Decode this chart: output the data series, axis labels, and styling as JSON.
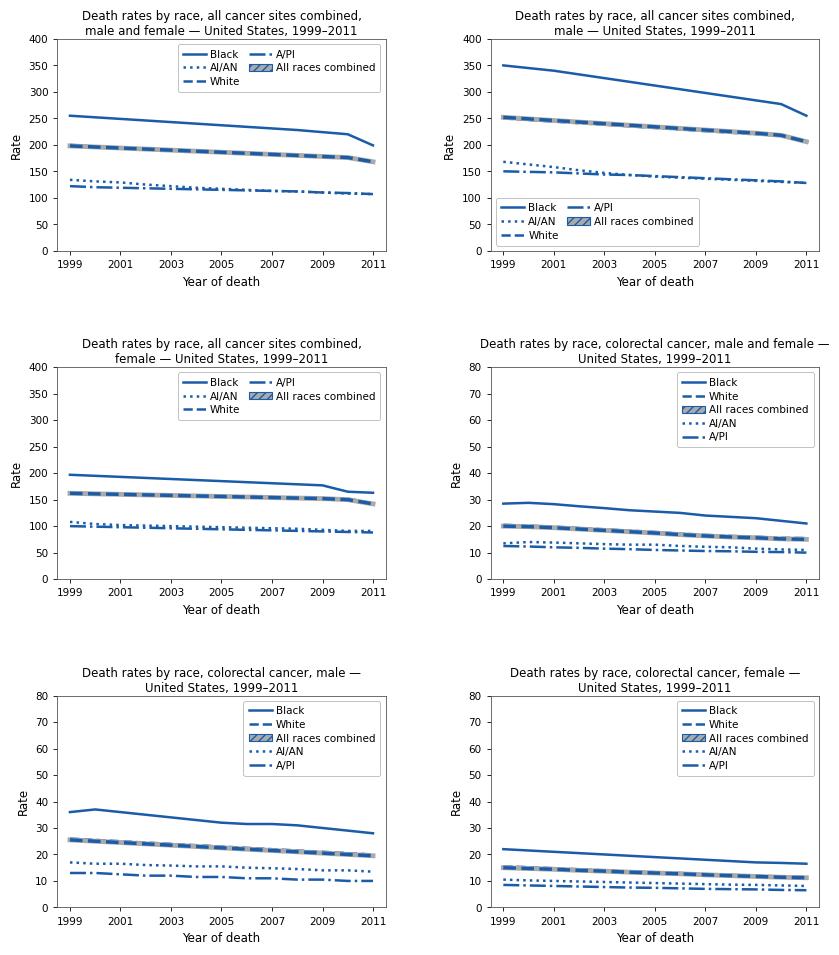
{
  "years": [
    1999,
    2000,
    2001,
    2002,
    2003,
    2004,
    2005,
    2006,
    2007,
    2008,
    2009,
    2010,
    2011
  ],
  "plots": [
    {
      "title": "Death rates by race, all cancer sites combined,\nmale and female — United States, 1999–2011",
      "ylim": [
        0,
        400
      ],
      "yticks": [
        0,
        50,
        100,
        150,
        200,
        250,
        300,
        350,
        400
      ],
      "legend_loc": "upper right",
      "legend_ncol": 2,
      "series": [
        {
          "label": "Black",
          "style": "solid",
          "color": "#1a5ca8",
          "lw": 1.8,
          "data": [
            255,
            252,
            249,
            246,
            243,
            240,
            237,
            234,
            231,
            228,
            224,
            220,
            199
          ]
        },
        {
          "label": "White",
          "style": "dashed",
          "color": "#1a5ca8",
          "lw": 1.8,
          "data": [
            200,
            197,
            195,
            193,
            191,
            189,
            187,
            185,
            183,
            181,
            179,
            177,
            169
          ]
        },
        {
          "label": "All races combined",
          "style": "arc",
          "color": "#aaaaaa",
          "lw": 3.5,
          "data": [
            198,
            196,
            194,
            192,
            190,
            188,
            186,
            184,
            182,
            180,
            178,
            176,
            168
          ]
        },
        {
          "label": "AI/AN",
          "style": "dotted",
          "color": "#1a5ca8",
          "lw": 1.8,
          "data": [
            134,
            131,
            129,
            125,
            122,
            119,
            117,
            115,
            113,
            112,
            110,
            108,
            107
          ]
        },
        {
          "label": "A/PI",
          "style": "dashdot",
          "color": "#1a5ca8",
          "lw": 1.8,
          "data": [
            122,
            120,
            119,
            118,
            117,
            116,
            115,
            114,
            113,
            112,
            110,
            109,
            107
          ]
        }
      ]
    },
    {
      "title": "Death rates by race, all cancer sites combined,\nmale — United States, 1999–2011",
      "ylim": [
        0,
        400
      ],
      "yticks": [
        0,
        50,
        100,
        150,
        200,
        250,
        300,
        350,
        400
      ],
      "legend_loc": "lower left",
      "legend_ncol": 2,
      "series": [
        {
          "label": "Black",
          "style": "solid",
          "color": "#1a5ca8",
          "lw": 1.8,
          "data": [
            350,
            345,
            340,
            333,
            326,
            319,
            312,
            305,
            298,
            291,
            284,
            277,
            255
          ]
        },
        {
          "label": "White",
          "style": "dashed",
          "color": "#1a5ca8",
          "lw": 1.8,
          "data": [
            250,
            247,
            244,
            241,
            238,
            235,
            232,
            229,
            226,
            223,
            220,
            217,
            207
          ]
        },
        {
          "label": "All races combined",
          "style": "arc",
          "color": "#aaaaaa",
          "lw": 3.5,
          "data": [
            252,
            249,
            246,
            243,
            240,
            237,
            234,
            231,
            228,
            225,
            222,
            218,
            206
          ]
        },
        {
          "label": "AI/AN",
          "style": "dotted",
          "color": "#1a5ca8",
          "lw": 1.8,
          "data": [
            168,
            163,
            158,
            152,
            147,
            143,
            140,
            138,
            136,
            134,
            132,
            130,
            128
          ]
        },
        {
          "label": "A/PI",
          "style": "dashdot",
          "color": "#1a5ca8",
          "lw": 1.8,
          "data": [
            150,
            149,
            148,
            146,
            144,
            143,
            141,
            139,
            137,
            135,
            133,
            131,
            128
          ]
        }
      ]
    },
    {
      "title": "Death rates by race, all cancer sites combined,\nfemale — United States, 1999–2011",
      "ylim": [
        0,
        400
      ],
      "yticks": [
        0,
        50,
        100,
        150,
        200,
        250,
        300,
        350,
        400
      ],
      "legend_loc": "upper right",
      "legend_ncol": 2,
      "series": [
        {
          "label": "Black",
          "style": "solid",
          "color": "#1a5ca8",
          "lw": 1.8,
          "data": [
            197,
            195,
            193,
            191,
            189,
            187,
            185,
            183,
            181,
            179,
            177,
            165,
            163
          ]
        },
        {
          "label": "White",
          "style": "dashed",
          "color": "#1a5ca8",
          "lw": 1.8,
          "data": [
            163,
            162,
            161,
            160,
            159,
            158,
            157,
            156,
            155,
            154,
            153,
            152,
            143
          ]
        },
        {
          "label": "All races combined",
          "style": "arc",
          "color": "#aaaaaa",
          "lw": 3.5,
          "data": [
            162,
            161,
            160,
            159,
            158,
            157,
            156,
            155,
            154,
            153,
            152,
            150,
            142
          ]
        },
        {
          "label": "AI/AN",
          "style": "dotted",
          "color": "#1a5ca8",
          "lw": 1.8,
          "data": [
            108,
            104,
            102,
            101,
            100,
            99,
            98,
            97,
            96,
            95,
            93,
            91,
            91
          ]
        },
        {
          "label": "A/PI",
          "style": "dashdot",
          "color": "#1a5ca8",
          "lw": 1.8,
          "data": [
            100,
            99,
            98,
            97,
            96,
            95,
            94,
            93,
            92,
            91,
            90,
            89,
            88
          ]
        }
      ]
    },
    {
      "title": "Death rates by race, colorectal cancer, male and female —\nUnited States, 1999–2011",
      "ylim": [
        0,
        80
      ],
      "yticks": [
        0,
        10,
        20,
        30,
        40,
        50,
        60,
        70,
        80
      ],
      "legend_loc": "upper right",
      "legend_ncol": 1,
      "series": [
        {
          "label": "Black",
          "style": "solid",
          "color": "#1a5ca8",
          "lw": 1.8,
          "data": [
            28.5,
            28.8,
            28.3,
            27.5,
            26.8,
            26.0,
            25.5,
            25.0,
            24.0,
            23.5,
            23.0,
            22.0,
            21.0
          ]
        },
        {
          "label": "White",
          "style": "dashed",
          "color": "#1a5ca8",
          "lw": 1.8,
          "data": [
            20.5,
            20.2,
            19.8,
            19.3,
            18.8,
            18.3,
            17.8,
            17.2,
            16.7,
            16.3,
            16.0,
            15.6,
            15.5
          ]
        },
        {
          "label": "All races combined",
          "style": "arc",
          "color": "#aaaaaa",
          "lw": 3.5,
          "data": [
            20.0,
            19.8,
            19.4,
            18.9,
            18.4,
            17.9,
            17.4,
            16.8,
            16.3,
            15.9,
            15.6,
            15.2,
            15.0
          ]
        },
        {
          "label": "AI/AN",
          "style": "dotted",
          "color": "#1a5ca8",
          "lw": 1.8,
          "data": [
            13.5,
            14.0,
            13.8,
            13.5,
            13.2,
            13.0,
            13.0,
            12.5,
            12.2,
            12.0,
            11.5,
            11.2,
            11.0
          ]
        },
        {
          "label": "A/PI",
          "style": "dashdot",
          "color": "#1a5ca8",
          "lw": 1.8,
          "data": [
            12.5,
            12.3,
            12.0,
            11.8,
            11.5,
            11.3,
            11.0,
            10.8,
            10.6,
            10.5,
            10.3,
            10.2,
            10.0
          ]
        }
      ]
    },
    {
      "title": "Death rates by race, colorectal cancer, male —\nUnited States, 1999–2011",
      "ylim": [
        0,
        80
      ],
      "yticks": [
        0,
        10,
        20,
        30,
        40,
        50,
        60,
        70,
        80
      ],
      "legend_loc": "upper right",
      "legend_ncol": 1,
      "series": [
        {
          "label": "Black",
          "style": "solid",
          "color": "#1a5ca8",
          "lw": 1.8,
          "data": [
            36,
            37,
            36,
            35,
            34,
            33,
            32,
            31.5,
            31.5,
            31,
            30,
            29,
            28
          ]
        },
        {
          "label": "White",
          "style": "dashed",
          "color": "#1a5ca8",
          "lw": 1.8,
          "data": [
            26,
            25.5,
            25,
            24.5,
            24,
            23.5,
            23,
            22.5,
            22,
            21.5,
            21,
            20.5,
            20
          ]
        },
        {
          "label": "All races combined",
          "style": "arc",
          "color": "#aaaaaa",
          "lw": 3.5,
          "data": [
            25.5,
            25,
            24.5,
            24,
            23.5,
            23,
            22.5,
            22,
            21.5,
            21,
            20.5,
            20,
            19.5
          ]
        },
        {
          "label": "AI/AN",
          "style": "dotted",
          "color": "#1a5ca8",
          "lw": 1.8,
          "data": [
            17,
            16.5,
            16.5,
            16,
            15.8,
            15.5,
            15.5,
            15,
            14.8,
            14.5,
            14,
            14,
            13.5
          ]
        },
        {
          "label": "A/PI",
          "style": "dashdot",
          "color": "#1a5ca8",
          "lw": 1.8,
          "data": [
            13,
            13,
            12.5,
            12,
            12,
            11.5,
            11.5,
            11,
            11,
            10.5,
            10.5,
            10,
            10
          ]
        }
      ]
    },
    {
      "title": "Death rates by race, colorectal cancer, female —\nUnited States, 1999–2011",
      "ylim": [
        0,
        80
      ],
      "yticks": [
        0,
        10,
        20,
        30,
        40,
        50,
        60,
        70,
        80
      ],
      "legend_loc": "upper right",
      "legend_ncol": 1,
      "series": [
        {
          "label": "Black",
          "style": "solid",
          "color": "#1a5ca8",
          "lw": 1.8,
          "data": [
            22,
            21.5,
            21,
            20.5,
            20,
            19.5,
            19,
            18.5,
            18,
            17.5,
            17,
            16.8,
            16.5
          ]
        },
        {
          "label": "White",
          "style": "dashed",
          "color": "#1a5ca8",
          "lw": 1.8,
          "data": [
            15.5,
            15.2,
            14.8,
            14.4,
            14.0,
            13.6,
            13.3,
            13.0,
            12.6,
            12.3,
            12.0,
            11.7,
            11.5
          ]
        },
        {
          "label": "All races combined",
          "style": "arc",
          "color": "#aaaaaa",
          "lw": 3.5,
          "data": [
            15.0,
            14.7,
            14.4,
            14.0,
            13.7,
            13.3,
            13.0,
            12.7,
            12.3,
            12.0,
            11.7,
            11.4,
            11.2
          ]
        },
        {
          "label": "AI/AN",
          "style": "dotted",
          "color": "#1a5ca8",
          "lw": 1.8,
          "data": [
            10.5,
            10.2,
            10.0,
            9.8,
            9.6,
            9.4,
            9.2,
            9.0,
            8.8,
            8.6,
            8.5,
            8.3,
            8.1
          ]
        },
        {
          "label": "A/PI",
          "style": "dashdot",
          "color": "#1a5ca8",
          "lw": 1.8,
          "data": [
            8.5,
            8.3,
            8.1,
            7.9,
            7.7,
            7.5,
            7.4,
            7.2,
            7.0,
            6.9,
            6.8,
            6.6,
            6.5
          ]
        }
      ]
    }
  ],
  "xlabel": "Year of death",
  "ylabel": "Rate",
  "title_fontsize": 8.5,
  "tick_fontsize": 7.5,
  "label_fontsize": 8.5,
  "legend_fontsize": 7.5,
  "bg_color": "#ffffff",
  "blue_color": "#1a5ca8",
  "gray_color": "#aaaaaa"
}
